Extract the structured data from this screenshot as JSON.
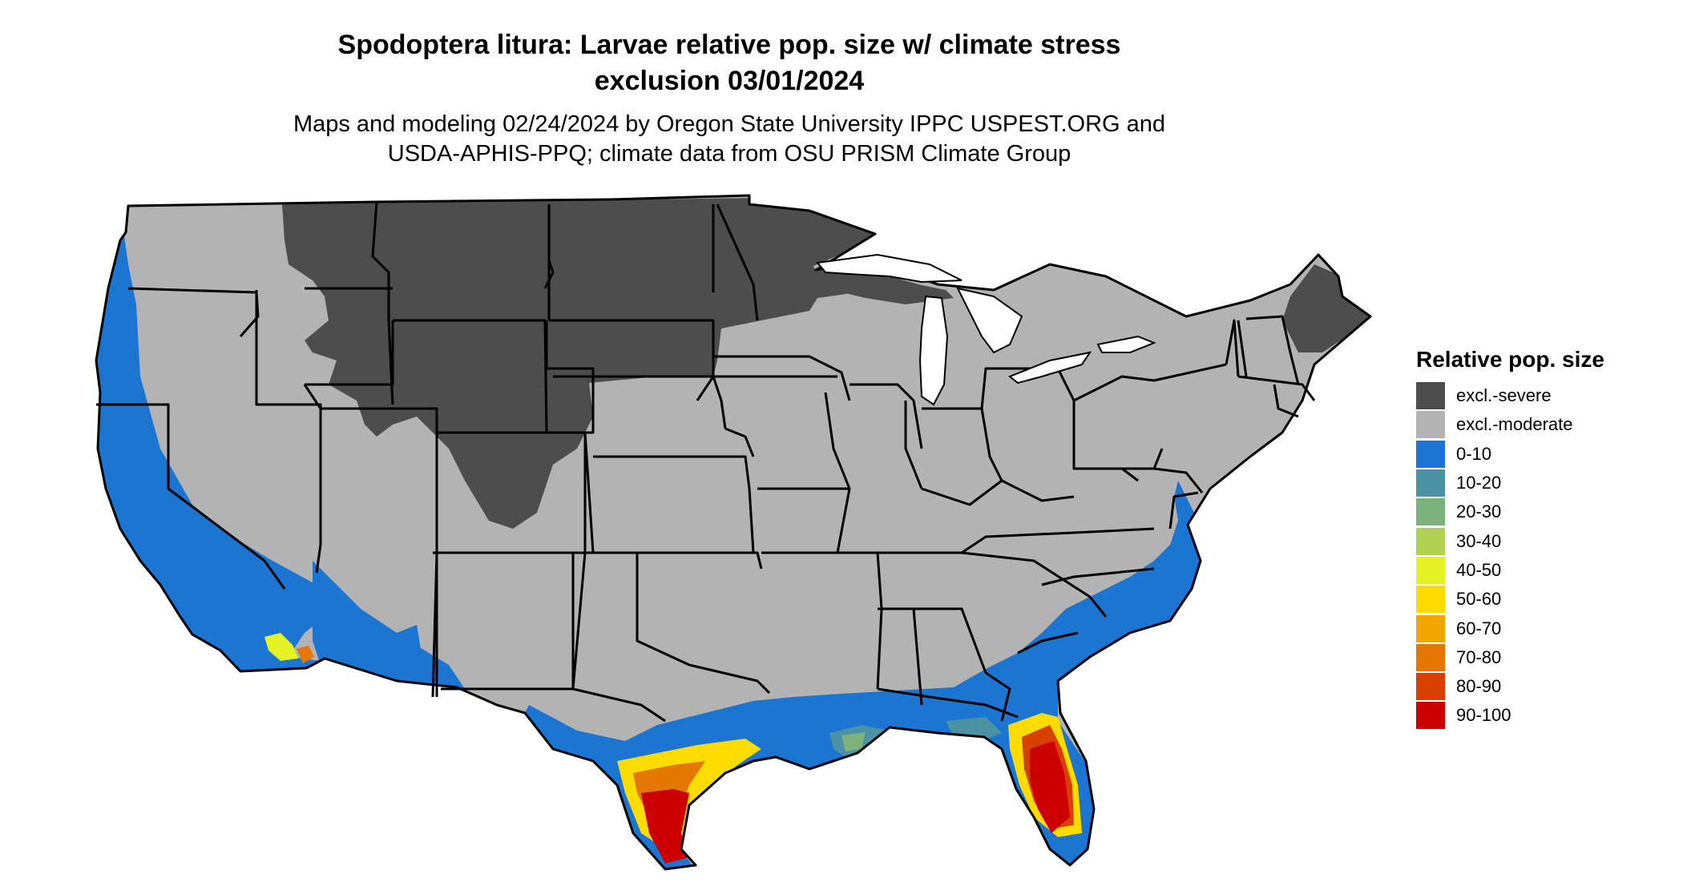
{
  "title_line1": "Spodoptera litura: Larvae relative pop. size w/ climate stress",
  "title_line2": "exclusion 03/01/2024",
  "subtitle_line1": "Maps and modeling 02/24/2024 by Oregon State University IPPC USPEST.ORG and",
  "subtitle_line2": "USDA-APHIS-PPQ; climate data from OSU PRISM Climate Group",
  "legend": {
    "title": "Relative pop. size",
    "items": [
      {
        "label": "excl.-severe",
        "color": "#4d4d4d"
      },
      {
        "label": "excl.-moderate",
        "color": "#b3b3b3"
      },
      {
        "label": "0-10",
        "color": "#1b75d1"
      },
      {
        "label": "10-20",
        "color": "#4b92a4"
      },
      {
        "label": "20-30",
        "color": "#7cb27c"
      },
      {
        "label": "30-40",
        "color": "#b0d250"
      },
      {
        "label": "40-50",
        "color": "#e5f225"
      },
      {
        "label": "50-60",
        "color": "#fbdb00"
      },
      {
        "label": "60-70",
        "color": "#f1a600"
      },
      {
        "label": "70-80",
        "color": "#e37700"
      },
      {
        "label": "80-90",
        "color": "#d84000"
      },
      {
        "label": "90-100",
        "color": "#cc0000"
      }
    ]
  }
}
